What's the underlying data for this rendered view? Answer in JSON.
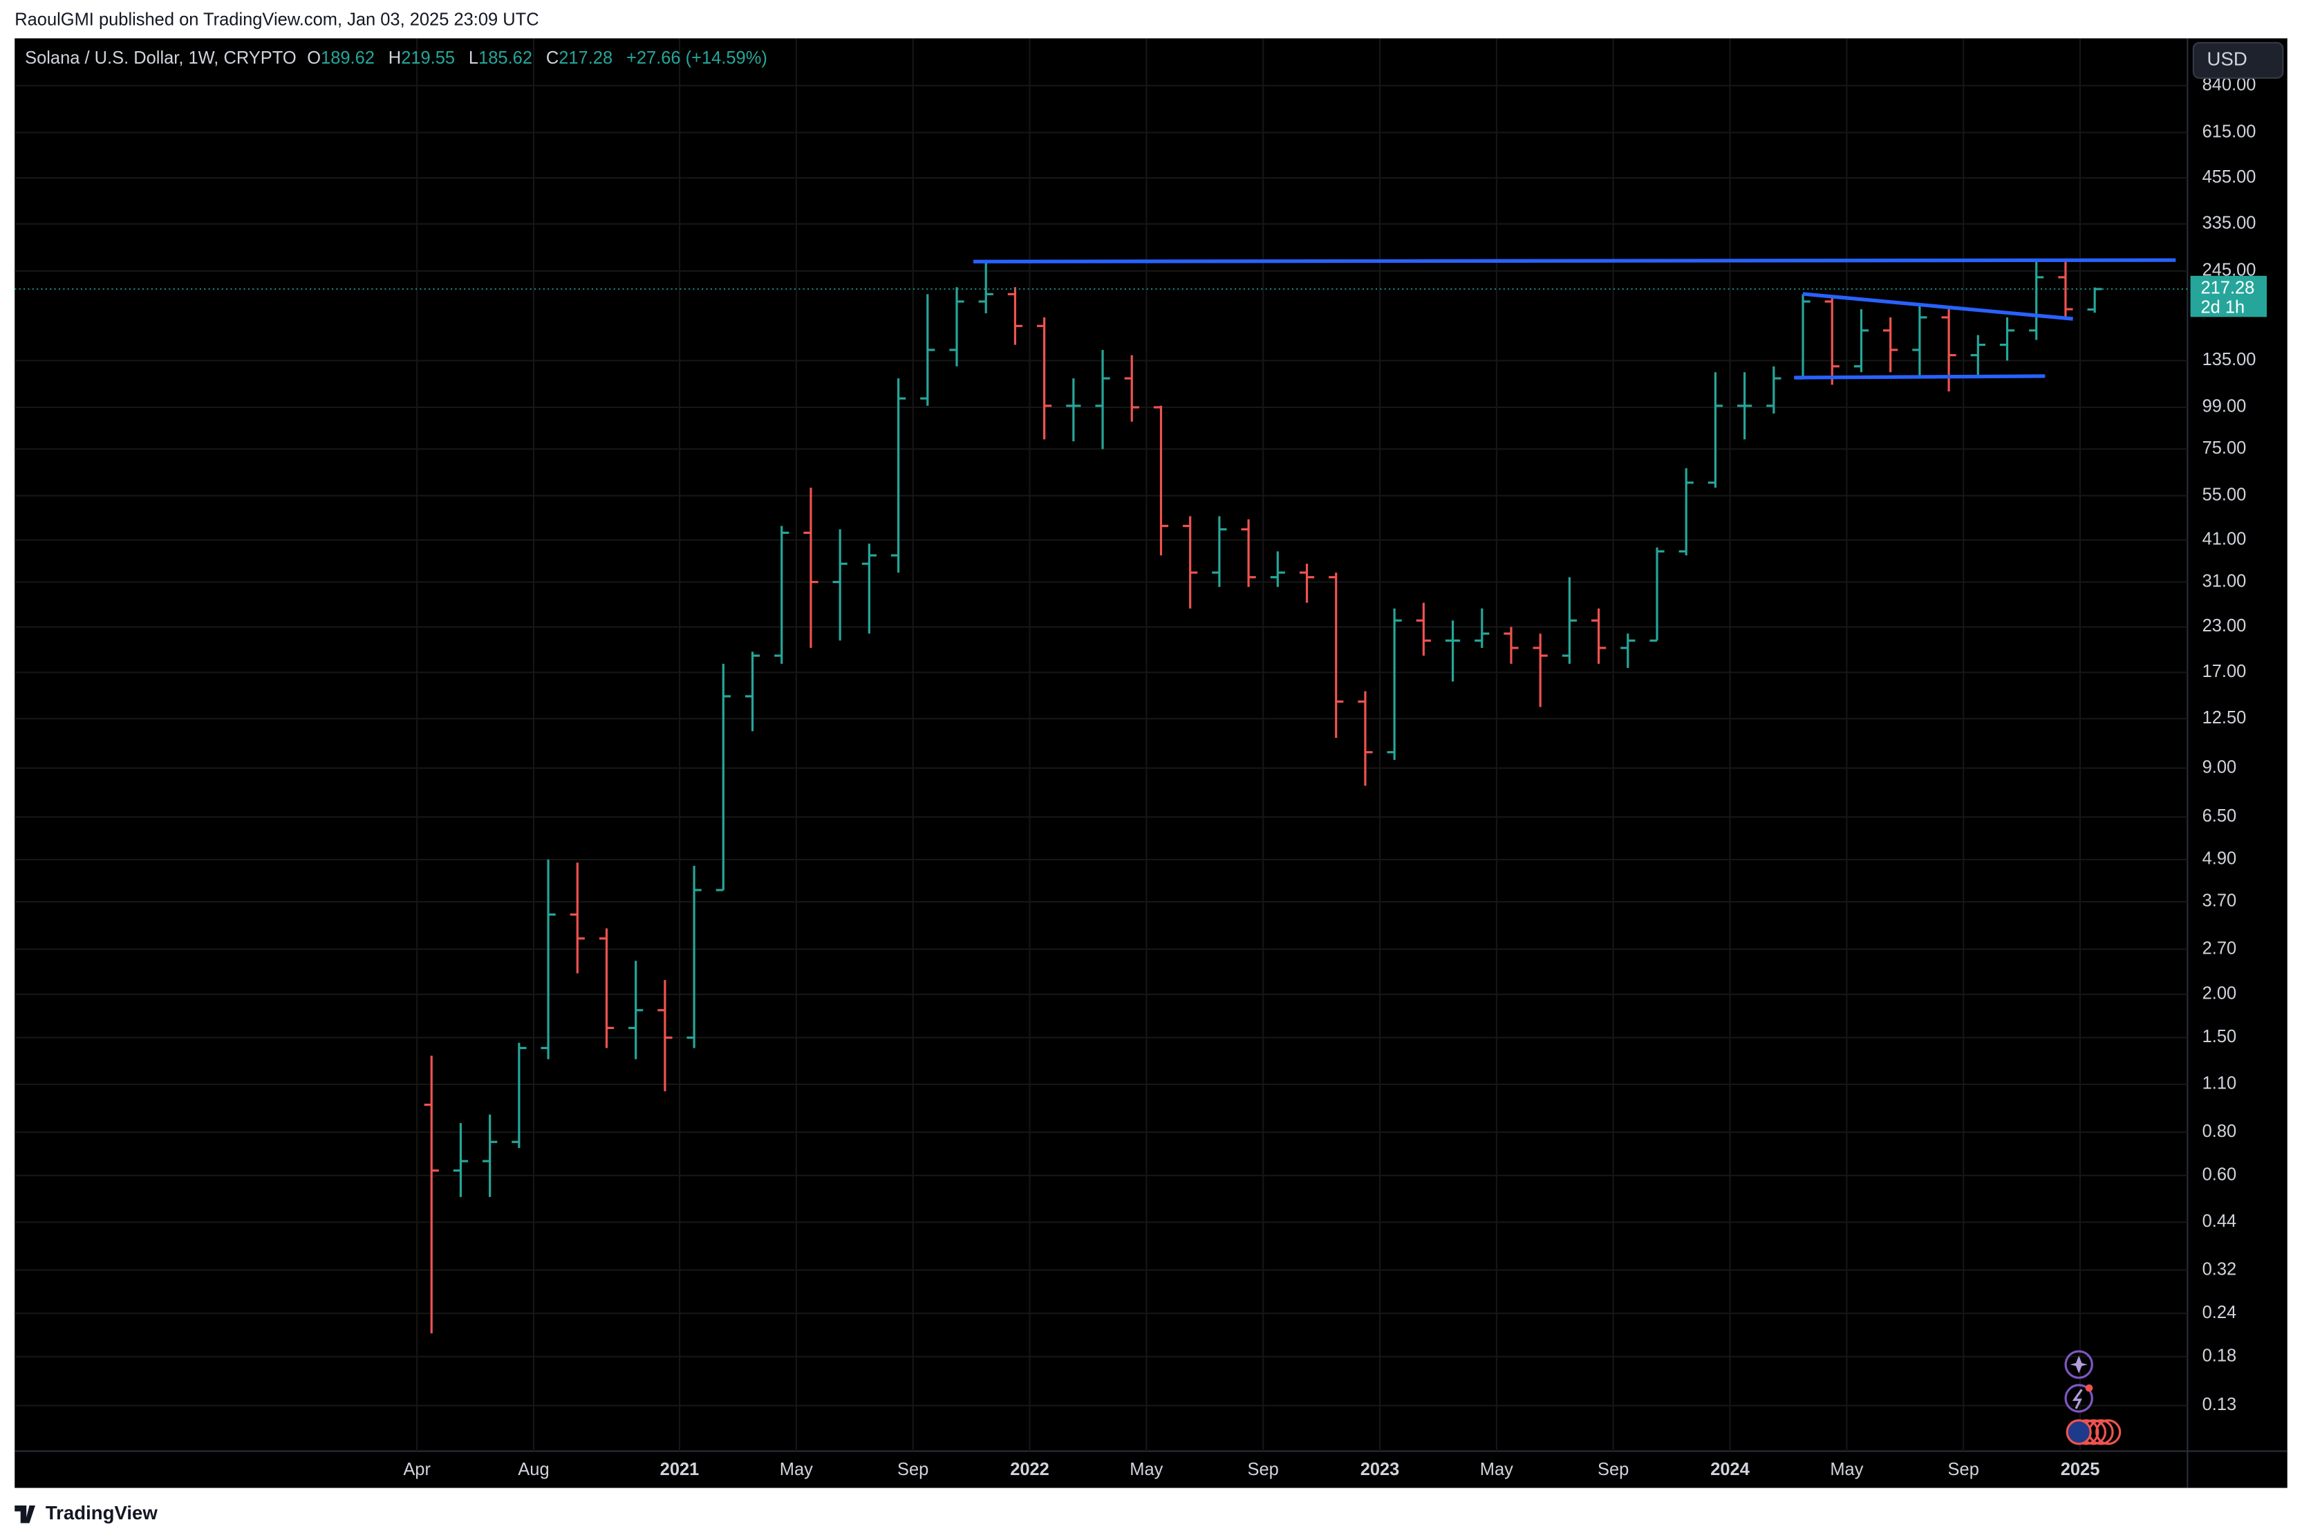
{
  "header": {
    "published": "RaoulGMI published on TradingView.com, Jan 03, 2025 23:09 UTC"
  },
  "footer": {
    "brand": "TradingView"
  },
  "currency": "USD",
  "chart_data": {
    "type": "ohlc",
    "title": "Solana / U.S. Dollar, 1W, CRYPTO",
    "legend_labels": {
      "open": "O",
      "high": "H",
      "low": "L",
      "close": "C"
    },
    "change": "+27.66 (+14.59%)",
    "countdown": "2d 1h",
    "up_color": "#26a69a",
    "down_color": "#ef5350",
    "log_scale": true,
    "grid": true,
    "x": [
      "2020-04",
      "2020-05",
      "2020-06",
      "2020-07",
      "2020-08",
      "2020-09",
      "2020-10",
      "2020-11",
      "2020-12",
      "2021-01",
      "2021-02",
      "2021-03",
      "2021-04",
      "2021-05",
      "2021-06",
      "2021-07",
      "2021-08",
      "2021-09",
      "2021-10",
      "2021-11",
      "2021-12",
      "2022-01",
      "2022-02",
      "2022-03",
      "2022-04",
      "2022-05",
      "2022-06",
      "2022-07",
      "2022-08",
      "2022-09",
      "2022-10",
      "2022-11",
      "2022-12",
      "2023-01",
      "2023-02",
      "2023-03",
      "2023-04",
      "2023-05",
      "2023-06",
      "2023-07",
      "2023-08",
      "2023-09",
      "2023-10",
      "2023-11",
      "2023-12",
      "2024-01",
      "2024-02",
      "2024-03",
      "2024-04",
      "2024-05",
      "2024-06",
      "2024-07",
      "2024-08",
      "2024-09",
      "2024-10",
      "2024-11",
      "2024-12",
      "2025-01"
    ],
    "open": [
      0.96,
      0.62,
      0.66,
      0.75,
      1.4,
      3.4,
      2.9,
      1.6,
      1.8,
      1.5,
      4,
      14.5,
      19,
      43,
      31,
      35,
      37,
      105,
      145,
      200,
      210,
      170,
      100,
      100,
      120,
      99,
      45,
      33,
      44,
      32,
      33,
      32,
      14,
      10,
      24,
      21,
      21,
      22,
      20,
      19,
      24,
      20,
      21,
      38,
      60,
      100,
      100,
      120,
      200,
      130,
      165,
      145,
      180,
      140,
      150,
      165,
      235,
      189.62
    ],
    "high": [
      1.33,
      0.85,
      0.9,
      1.45,
      4.9,
      4.8,
      3.1,
      2.5,
      2.2,
      4.7,
      18,
      19.5,
      45,
      58,
      44,
      40,
      120,
      210,
      220,
      260,
      220,
      180,
      120,
      145,
      140,
      100,
      48,
      48,
      47,
      38,
      35,
      33,
      15,
      26,
      27,
      24,
      26,
      23,
      22,
      32,
      26,
      22,
      39,
      66,
      125,
      125,
      130,
      210,
      205,
      190,
      180,
      195,
      190,
      160,
      180,
      265,
      265,
      219.55
    ],
    "low": [
      0.21,
      0.52,
      0.52,
      0.72,
      1.3,
      2.3,
      1.4,
      1.3,
      1.05,
      1.4,
      4,
      11.5,
      18,
      20,
      21,
      22,
      33,
      100,
      130,
      185,
      150,
      80,
      79,
      75,
      90,
      37,
      26,
      30,
      30,
      30,
      27,
      11,
      8,
      9.5,
      19,
      16,
      20,
      18,
      13.5,
      18,
      18,
      17.5,
      21,
      37,
      58,
      80,
      95,
      120,
      115,
      125,
      125,
      120,
      110,
      120,
      135,
      155,
      180,
      185.62
    ],
    "close": [
      0.62,
      0.66,
      0.75,
      1.4,
      3.4,
      2.9,
      1.6,
      1.8,
      1.5,
      4,
      14.5,
      19,
      43,
      31,
      35,
      37,
      105,
      145,
      200,
      210,
      170,
      100,
      100,
      120,
      99,
      45,
      33,
      44,
      32,
      33,
      32,
      14,
      10,
      24,
      21,
      21,
      22,
      20,
      19,
      24,
      20,
      21,
      38,
      60,
      100,
      100,
      120,
      200,
      130,
      165,
      145,
      180,
      140,
      150,
      165,
      235,
      190,
      217.28
    ],
    "xticks": [
      {
        "value": "2020-04",
        "label": "Apr"
      },
      {
        "value": "2020-08",
        "label": "Aug"
      },
      {
        "value": "2021-01",
        "label": "2021"
      },
      {
        "value": "2021-05",
        "label": "May"
      },
      {
        "value": "2021-09",
        "label": "Sep"
      },
      {
        "value": "2022-01",
        "label": "2022"
      },
      {
        "value": "2022-05",
        "label": "May"
      },
      {
        "value": "2022-09",
        "label": "Sep"
      },
      {
        "value": "2023-01",
        "label": "2023"
      },
      {
        "value": "2023-05",
        "label": "May"
      },
      {
        "value": "2023-09",
        "label": "Sep"
      },
      {
        "value": "2024-01",
        "label": "2024"
      },
      {
        "value": "2024-05",
        "label": "May"
      },
      {
        "value": "2024-09",
        "label": "Sep"
      },
      {
        "value": "2025-01",
        "label": "2025"
      }
    ],
    "ylim": [
      0.096,
      1150
    ],
    "yticks": [
      0.13,
      0.18,
      0.24,
      0.32,
      0.44,
      {
        "value": 0.6,
        "label": "0.60"
      },
      {
        "value": 0.8,
        "label": "0.80"
      },
      {
        "value": 1.1,
        "label": "1.10"
      },
      {
        "value": 1.5,
        "label": "1.50"
      },
      {
        "value": 2,
        "label": "2.00"
      },
      {
        "value": 2.7,
        "label": "2.70"
      },
      {
        "value": 3.7,
        "label": "3.70"
      },
      {
        "value": 4.9,
        "label": "4.90"
      },
      {
        "value": 6.5,
        "label": "6.50"
      },
      {
        "value": 9,
        "label": "9.00"
      },
      {
        "value": 12.5,
        "label": "12.50"
      },
      {
        "value": 17,
        "label": "17.00"
      },
      {
        "value": 23,
        "label": "23.00"
      },
      {
        "value": 31,
        "label": "31.00"
      },
      {
        "value": 41,
        "label": "41.00"
      },
      {
        "value": 55,
        "label": "55.00"
      },
      {
        "value": 75,
        "label": "75.00"
      },
      {
        "value": 99,
        "label": "99.00"
      },
      {
        "value": 135,
        "label": "135.00"
      },
      {
        "value": 245,
        "label": "245.00"
      },
      {
        "value": 335,
        "label": "335.00"
      },
      {
        "value": 455,
        "label": "455.00"
      },
      {
        "value": 615,
        "label": "615.00"
      },
      {
        "value": 840,
        "label": "840.00"
      }
    ]
  }
}
